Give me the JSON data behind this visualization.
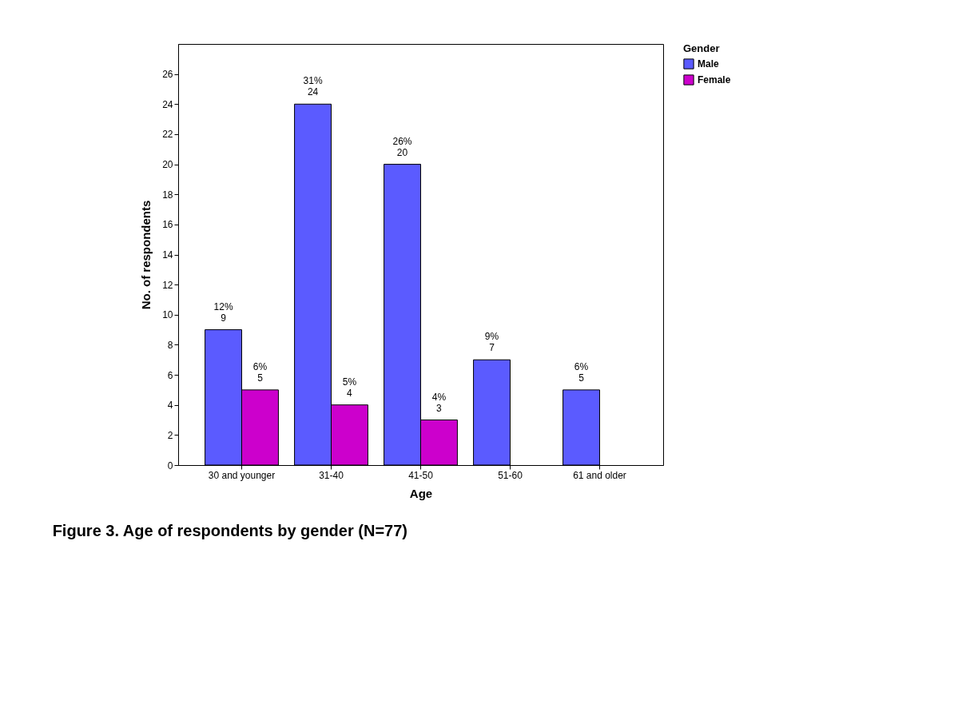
{
  "chart_data": {
    "type": "bar",
    "title": "Figure 3. Age of respondents by gender (N=77)",
    "xlabel": "Age",
    "ylabel": "No. of respondents",
    "legend_title": "Gender",
    "legend": "top right",
    "grid": false,
    "categories": [
      "30 and younger",
      "31-40",
      "41-50",
      "51-60",
      "61 and older"
    ],
    "series": [
      {
        "name": "Male",
        "color": "#5b5bff",
        "values": [
          9,
          24,
          20,
          7,
          5
        ],
        "value_labels": [
          "12%\n9",
          "31%\n24",
          "26%\n20",
          "9%\n7",
          "6%\n5"
        ]
      },
      {
        "name": "Female",
        "color": "#cc00cc",
        "values": [
          5,
          4,
          3,
          null,
          null
        ],
        "value_labels": [
          "6%\n5",
          "5%\n4",
          "4%\n3",
          null,
          null
        ]
      }
    ],
    "ylim": [
      0,
      28
    ],
    "yticks": [
      0,
      2,
      4,
      6,
      8,
      10,
      12,
      14,
      16,
      18,
      20,
      22,
      24,
      26
    ]
  }
}
